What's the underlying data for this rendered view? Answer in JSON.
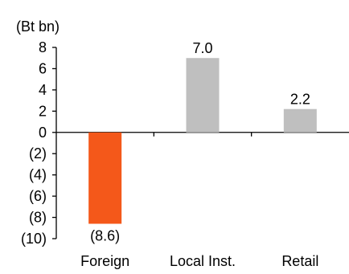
{
  "chart_data": {
    "type": "bar",
    "unit_label": "(Bt bn)",
    "categories": [
      "Foreign",
      "Local Inst.",
      "Retail"
    ],
    "values": [
      -8.6,
      7.0,
      2.2
    ],
    "data_labels": [
      "(8.6)",
      "7.0",
      "2.2"
    ],
    "bar_colors": [
      "#F4581A",
      "#BFBFBF",
      "#BFBFBF"
    ],
    "ylim": [
      -10,
      8
    ],
    "yticks": [
      8,
      6,
      4,
      2,
      0,
      -2,
      -4,
      -6,
      -8,
      -10
    ],
    "ytick_labels": [
      "8",
      "6",
      "4",
      "2",
      "0",
      "(2)",
      "(4)",
      "(6)",
      "(8)",
      "(10)"
    ],
    "grid": false,
    "legend": "none"
  }
}
